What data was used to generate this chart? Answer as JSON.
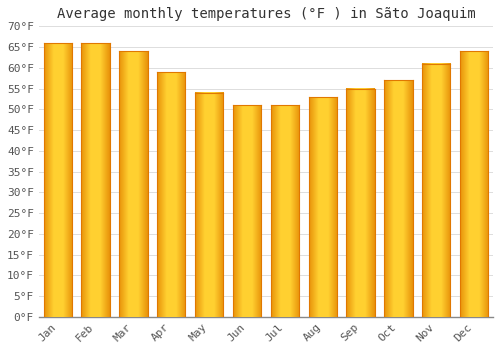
{
  "months": [
    "Jan",
    "Feb",
    "Mar",
    "Apr",
    "May",
    "Jun",
    "Jul",
    "Aug",
    "Sep",
    "Oct",
    "Nov",
    "Dec"
  ],
  "values": [
    66,
    66,
    64,
    59,
    54,
    51,
    51,
    53,
    55,
    57,
    61,
    64
  ],
  "bar_color_center": "#FFD966",
  "bar_color_edge": "#F5A800",
  "title": "Average monthly temperatures (°F ) in Sãto Joaquim",
  "ylim": [
    0,
    70
  ],
  "ytick_step": 5,
  "background_color": "#FFFFFF",
  "grid_color": "#DDDDDD",
  "title_fontsize": 10,
  "tick_fontsize": 8,
  "font_family": "monospace"
}
